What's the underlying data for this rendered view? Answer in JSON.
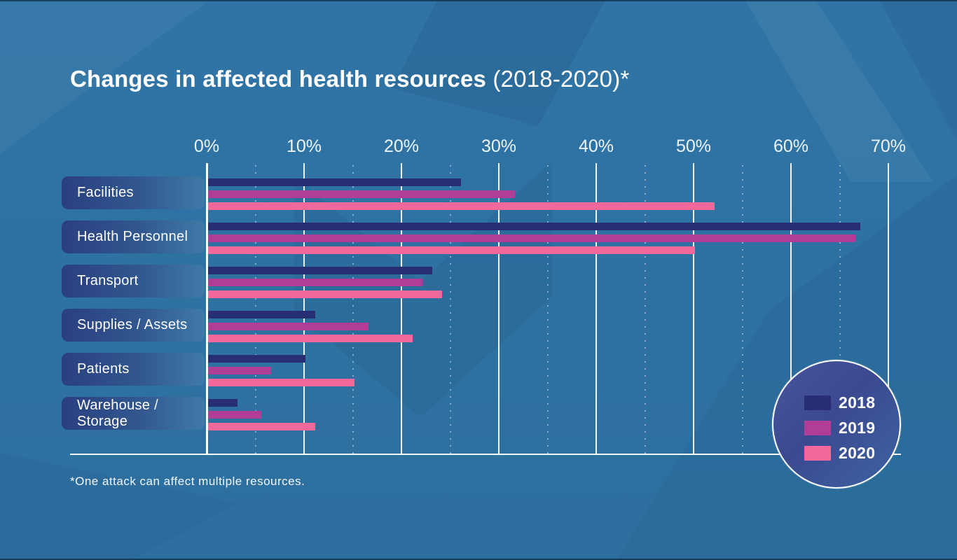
{
  "title": {
    "bold": "Changes in affected health resources",
    "regular": "(2018-2020)*"
  },
  "footnote": "*One attack can affect multiple resources.",
  "axis": {
    "tick_labels": [
      "0%",
      "10%",
      "20%",
      "30%",
      "40%",
      "50%",
      "60%",
      "70%"
    ],
    "min": 0,
    "max": 70,
    "step": 10
  },
  "legend": {
    "items": [
      {
        "label": "2018",
        "color": "#272e74"
      },
      {
        "label": "2019",
        "color": "#b13e96"
      },
      {
        "label": "2020",
        "color": "#f2689a"
      }
    ]
  },
  "chart_data": {
    "type": "bar",
    "orientation": "horizontal",
    "title": "Changes in affected health resources (2018-2020)*",
    "xlabel": "",
    "ylabel": "",
    "xlim": [
      0,
      70
    ],
    "x_unit": "%",
    "grid": true,
    "legend_position": "bottom-right-circle",
    "categories": [
      "Facilities",
      "Health Personnel",
      "Transport",
      "Supplies / Assets",
      "Patients",
      "Warehouse / Storage"
    ],
    "series": [
      {
        "name": "2018",
        "color": "#272e74",
        "values": [
          26,
          67,
          23,
          11,
          10,
          3
        ]
      },
      {
        "name": "2019",
        "color": "#b13e96",
        "values": [
          31.5,
          66.5,
          22,
          16.5,
          6.5,
          5.5
        ]
      },
      {
        "name": "2020",
        "color": "#f2689a",
        "values": [
          52,
          50,
          24,
          21,
          15,
          11
        ]
      }
    ]
  },
  "colors": {
    "background": "#2e72a2",
    "gridline": "#ffffff",
    "pill_gradient_start": "#2a3f80",
    "pill_gradient_end": "#3f7aa8",
    "legend_circle_fill": "#3b4a90",
    "text": "#ffffff"
  }
}
